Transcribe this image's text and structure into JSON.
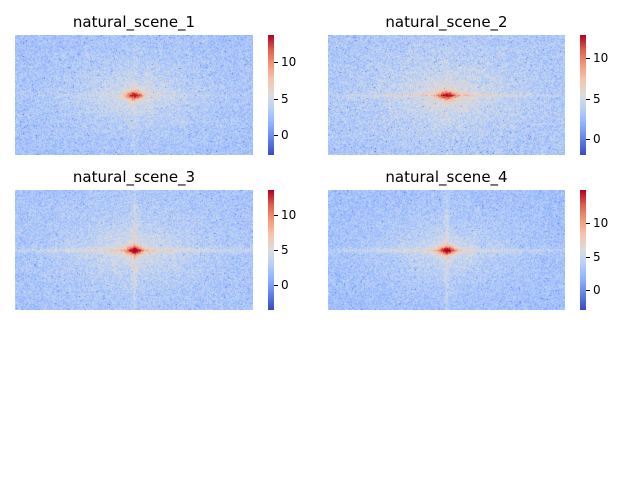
{
  "chart_data": [
    {
      "type": "heatmap",
      "title": "natural_scene_1",
      "colormap": "coolwarm",
      "vmin": -2.7,
      "vmax": 13.7,
      "colorbar_ticks": [
        0,
        5,
        10
      ],
      "colorbar_tick_labels": [
        "0",
        "5",
        "10"
      ],
      "peak_value": 12.5,
      "background_value": 2.5,
      "pattern": "centered bright spot with faint cross"
    },
    {
      "type": "heatmap",
      "title": "natural_scene_2",
      "colormap": "coolwarm",
      "vmin": -2.0,
      "vmax": 12.9,
      "colorbar_ticks": [
        0,
        5,
        10
      ],
      "colorbar_tick_labels": [
        "0",
        "5",
        "10"
      ],
      "peak_value": 12.0,
      "background_value": 3.0,
      "pattern": "centered point with thin horizontal line"
    },
    {
      "type": "heatmap",
      "title": "natural_scene_3",
      "colormap": "coolwarm",
      "vmin": -3.5,
      "vmax": 13.5,
      "colorbar_ticks": [
        0,
        5,
        10
      ],
      "colorbar_tick_labels": [
        "0",
        "5",
        "10"
      ],
      "peak_value": 12.5,
      "background_value": 2.0,
      "pattern": "centered spot with strong cross"
    },
    {
      "type": "heatmap",
      "title": "natural_scene_4",
      "colormap": "coolwarm",
      "vmin": -3.0,
      "vmax": 15.0,
      "colorbar_ticks": [
        0,
        5,
        10
      ],
      "colorbar_tick_labels": [
        "0",
        "5",
        "10"
      ],
      "peak_value": 14.0,
      "background_value": 2.5,
      "pattern": "centered spot with strong cross"
    }
  ]
}
